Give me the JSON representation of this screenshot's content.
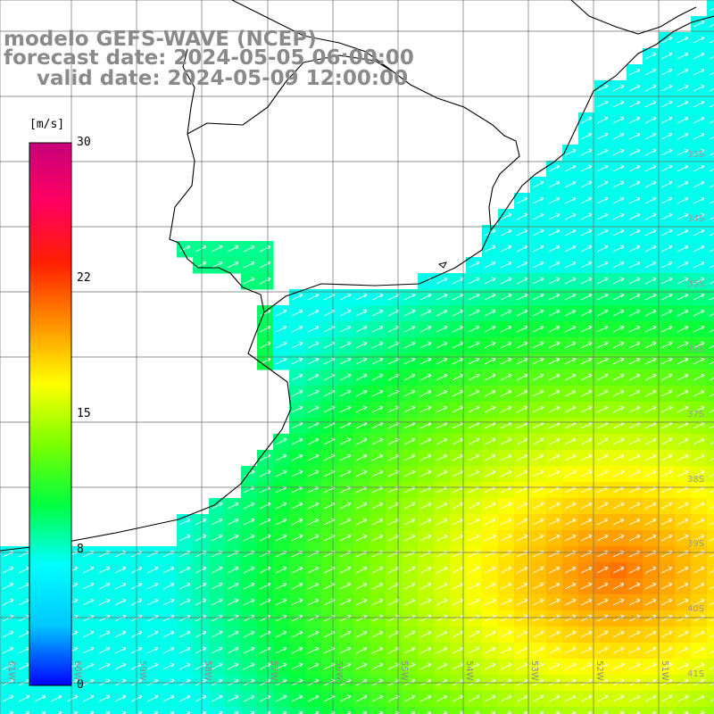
{
  "title": {
    "line1": "modelo GEFS-WAVE (NCEP)",
    "line2": "forecast date: 2024-05-05 06:00:00",
    "line3": "valid date: 2024-05-09 12:00:00"
  },
  "colorbar": {
    "units": "[m/s]",
    "ticks": [
      "30",
      "22",
      "15",
      "8",
      "0"
    ],
    "stops": [
      "#0000ff",
      "#00c8ff",
      "#00ffff",
      "#00ff40",
      "#7cff00",
      "#ffff00",
      "#ff9000",
      "#ff2000",
      "#ff0060",
      "#c8007a"
    ]
  },
  "lat_labels": [
    "33S",
    "34S",
    "35S",
    "36S",
    "37S",
    "38S",
    "39S",
    "40S",
    "41S"
  ],
  "lon_labels": [
    "61W",
    "60W",
    "59W",
    "58W",
    "57W",
    "56W",
    "55W",
    "54W",
    "53W",
    "52W",
    "51W"
  ],
  "field": {
    "variable": "wind speed and direction",
    "direction": "from SW (arrows toward NE)"
  }
}
